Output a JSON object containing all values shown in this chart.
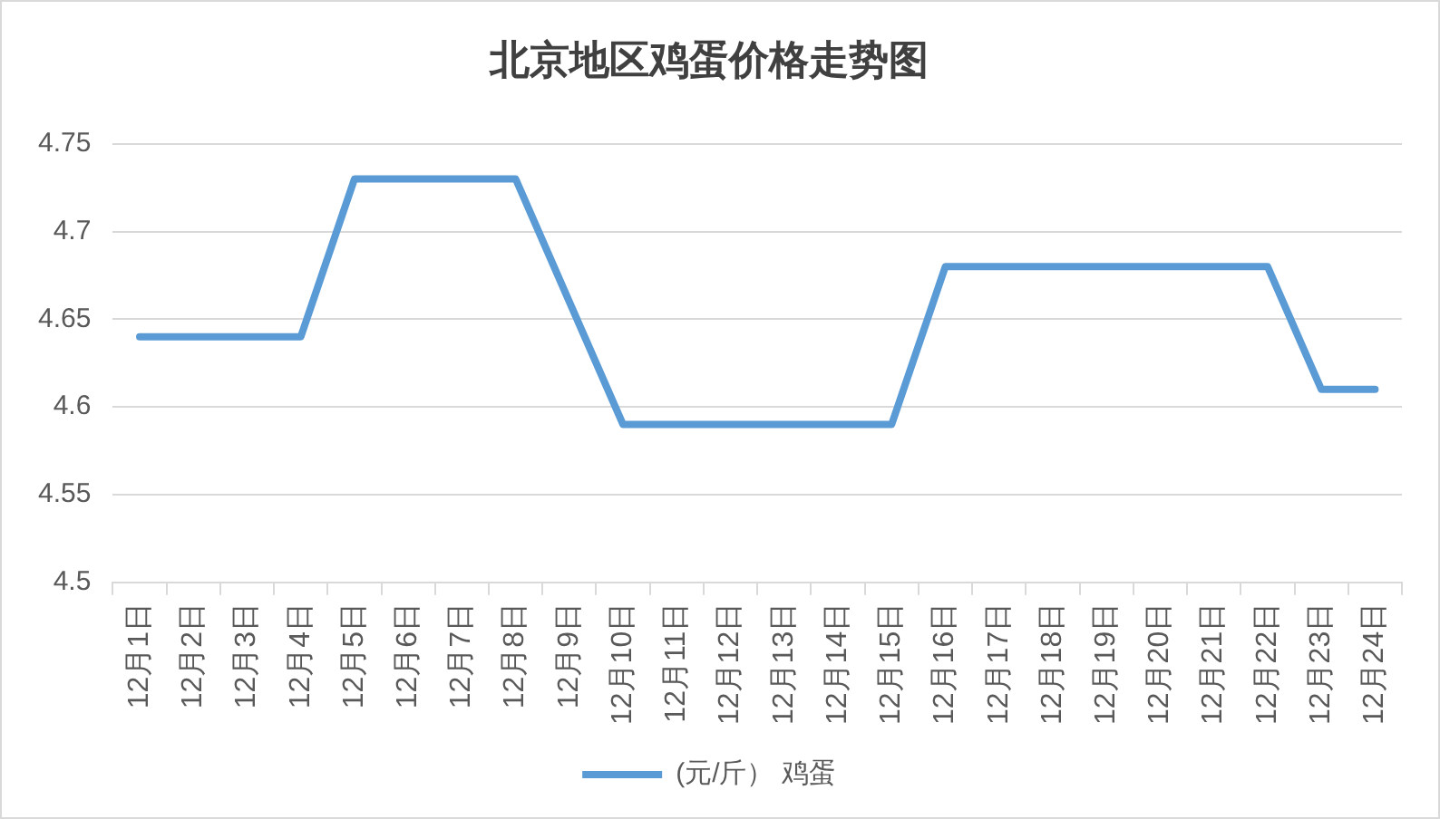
{
  "chart_data": {
    "type": "line",
    "title": "北京地区鸡蛋价格走势图",
    "categories": [
      "12月1日",
      "12月2日",
      "12月3日",
      "12月4日",
      "12月5日",
      "12月6日",
      "12月7日",
      "12月8日",
      "12月9日",
      "12月10日",
      "12月11日",
      "12月12日",
      "12月13日",
      "12月14日",
      "12月15日",
      "12月16日",
      "12月17日",
      "12月18日",
      "12月19日",
      "12月20日",
      "12月21日",
      "12月22日",
      "12月23日",
      "12月24日"
    ],
    "series": [
      {
        "name": "(元/斤） 鸡蛋",
        "color": "#5b9bd5",
        "values": [
          4.64,
          4.64,
          4.64,
          4.64,
          4.73,
          4.73,
          4.73,
          4.73,
          4.66,
          4.59,
          4.59,
          4.59,
          4.59,
          4.59,
          4.59,
          4.68,
          4.68,
          4.68,
          4.68,
          4.68,
          4.68,
          4.68,
          4.61,
          4.61
        ]
      }
    ],
    "ylim": [
      4.5,
      4.75
    ],
    "yticks": [
      4.5,
      4.55,
      4.6,
      4.65,
      4.7,
      4.75
    ],
    "grid": "y",
    "legend": "bottom",
    "marker": "none",
    "line_style": "solid"
  }
}
